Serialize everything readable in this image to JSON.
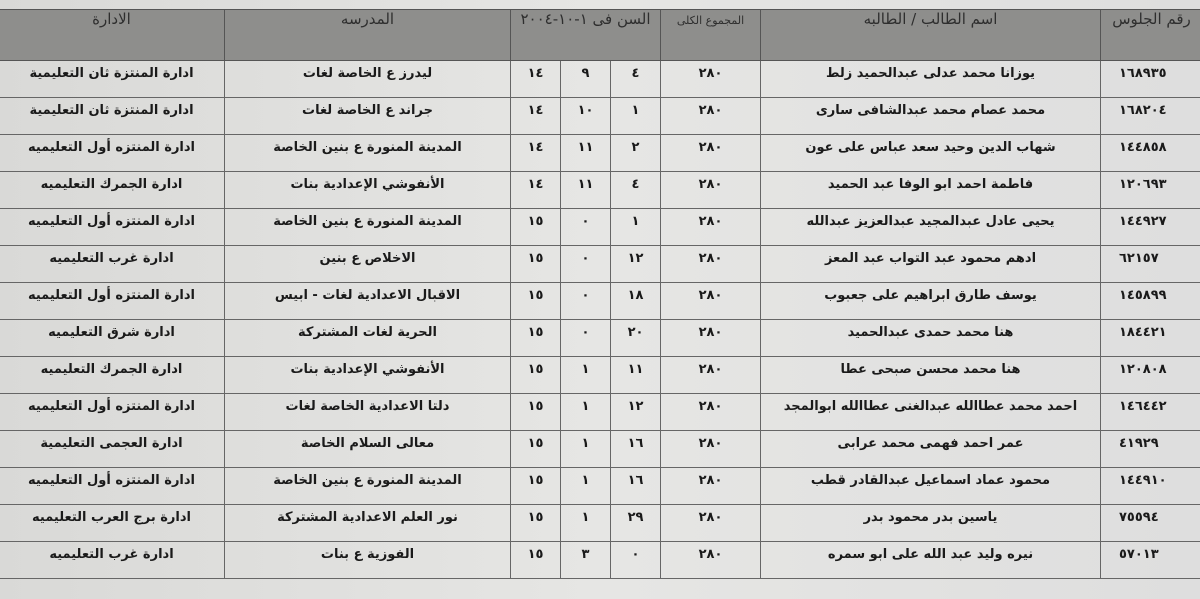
{
  "headers": {
    "seat": "رقم الجلوس",
    "name": "اسم الطالب / الطالبه",
    "total": "المجموع الكلى",
    "age": "السن فى ١-١٠-٢٠٠٤",
    "school": "المدرسه",
    "administration": "الادارة"
  },
  "rows": [
    {
      "seat": "١٦٨٩٣٥",
      "name": "يوزانا محمد عدلى عبدالحميد زلط",
      "total": "٢٨٠",
      "day": "٤",
      "month": "٩",
      "year": "١٤",
      "school": "ليدرز ع الخاصة لغات",
      "admin": "ادارة المنتزة ثان التعليمية"
    },
    {
      "seat": "١٦٨٢٠٤",
      "name": "محمد عصام محمد عبدالشافى سارى",
      "total": "٢٨٠",
      "day": "١",
      "month": "١٠",
      "year": "١٤",
      "school": "جراند ع الخاصة لغات",
      "admin": "ادارة المنتزة ثان التعليمية"
    },
    {
      "seat": "١٤٤٨٥٨",
      "name": "شهاب الدين وحيد سعد عباس على عون",
      "total": "٢٨٠",
      "day": "٢",
      "month": "١١",
      "year": "١٤",
      "school": "المدينة المنورة ع بنين الخاصة",
      "admin": "ادارة المنتزه أول التعليميه"
    },
    {
      "seat": "١٢٠٦٩٣",
      "name": "فاطمة احمد ابو الوفا عبد الحميد",
      "total": "٢٨٠",
      "day": "٤",
      "month": "١١",
      "year": "١٤",
      "school": "الأنفوشي الإعدادية بنات",
      "admin": "ادارة الجمرك التعليميه"
    },
    {
      "seat": "١٤٤٩٢٧",
      "name": "يحيى عادل عبدالمجيد عبدالعزيز عبدالله",
      "total": "٢٨٠",
      "day": "١",
      "month": "٠",
      "year": "١٥",
      "school": "المدينة المنورة ع بنين الخاصة",
      "admin": "ادارة المنتزه أول التعليميه"
    },
    {
      "seat": "٦٢١٥٧",
      "name": "ادهم محمود عبد التواب عبد المعز",
      "total": "٢٨٠",
      "day": "١٢",
      "month": "٠",
      "year": "١٥",
      "school": "الاخلاص ع بنين",
      "admin": "ادارة غرب التعليميه"
    },
    {
      "seat": "١٤٥٨٩٩",
      "name": "يوسف طارق ابراهيم على جعبوب",
      "total": "٢٨٠",
      "day": "١٨",
      "month": "٠",
      "year": "١٥",
      "school": "الاقبال الاعدادية لغات - ابيس",
      "admin": "ادارة المنتزه أول التعليميه"
    },
    {
      "seat": "١٨٤٤٢١",
      "name": "هنا محمد حمدى عبدالحميد",
      "total": "٢٨٠",
      "day": "٢٠",
      "month": "٠",
      "year": "١٥",
      "school": "الحرية لغات المشتركة",
      "admin": "ادارة شرق التعليميه"
    },
    {
      "seat": "١٢٠٨٠٨",
      "name": "هنا محمد محسن صبحى عطا",
      "total": "٢٨٠",
      "day": "١١",
      "month": "١",
      "year": "١٥",
      "school": "الأنفوشي الإعدادية بنات",
      "admin": "ادارة الجمرك التعليميه"
    },
    {
      "seat": "١٤٦٤٤٢",
      "name": "احمد محمد عطاالله عبدالغنى عطاالله ابوالمجد",
      "total": "٢٨٠",
      "day": "١٢",
      "month": "١",
      "year": "١٥",
      "school": "دلتا الاعدادية الخاصة لغات",
      "admin": "ادارة المنتزه أول التعليميه"
    },
    {
      "seat": "٤١٩٢٩",
      "name": "عمر احمد فهمى محمد عرابى",
      "total": "٢٨٠",
      "day": "١٦",
      "month": "١",
      "year": "١٥",
      "school": "معالى السلام الخاصة",
      "admin": "ادارة العجمى التعليمية"
    },
    {
      "seat": "١٤٤٩١٠",
      "name": "محمود عماد اسماعيل عبدالقادر قطب",
      "total": "٢٨٠",
      "day": "١٦",
      "month": "١",
      "year": "١٥",
      "school": "المدينة المنورة ع بنين الخاصة",
      "admin": "ادارة المنتزه أول التعليميه"
    },
    {
      "seat": "٧٥٥٩٤",
      "name": "ياسين بدر محمود بدر",
      "total": "٢٨٠",
      "day": "٢٩",
      "month": "١",
      "year": "١٥",
      "school": "نور العلم الاعدادية المشتركة",
      "admin": "ادارة برج العرب التعليميه"
    },
    {
      "seat": "٥٧٠١٣",
      "name": "نيره وليد عبد الله على ابو سمره",
      "total": "٢٨٠",
      "day": "٠",
      "month": "٣",
      "year": "١٥",
      "school": "الفوزية ع بنات",
      "admin": "ادارة غرب التعليميه"
    }
  ]
}
